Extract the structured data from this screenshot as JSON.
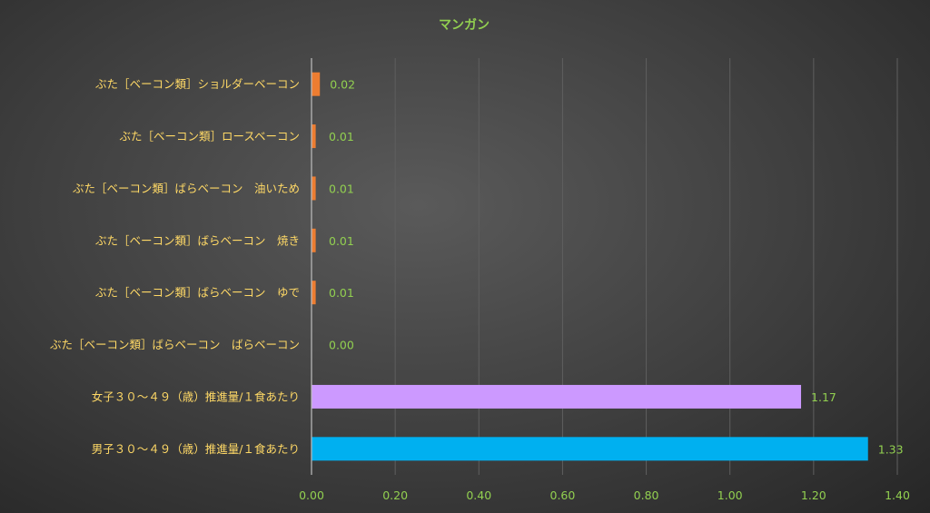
{
  "chart_data": {
    "type": "bar",
    "orientation": "horizontal",
    "title": "マンガン",
    "xlabel": "",
    "ylabel": "",
    "xlim": [
      0,
      1.4
    ],
    "x_ticks": [
      "0.00",
      "0.20",
      "0.40",
      "0.60",
      "0.80",
      "1.00",
      "1.20",
      "1.40"
    ],
    "grid": true,
    "legend": "none",
    "categories": [
      "ぶた［ベーコン類］ショルダーベーコン",
      "ぶた［ベーコン類］ロースベーコン",
      "ぶた［ベーコン類］ばらベーコン　油いため",
      "ぶた［ベーコン類］ばらベーコン　焼き",
      "ぶた［ベーコン類］ばらベーコン　ゆで",
      "ぶた［ベーコン類］ばらベーコン　ばらベーコン",
      "女子３０～４９（歳）推進量/１食あたり",
      "男子３０～４９（歳）推進量/１食あたり"
    ],
    "values": [
      0.02,
      0.01,
      0.01,
      0.01,
      0.01,
      0.0,
      1.17,
      1.33
    ],
    "value_labels": [
      "0.02",
      "0.01",
      "0.01",
      "0.01",
      "0.01",
      "0.00",
      "1.17",
      "1.33"
    ],
    "bar_colors": [
      "#ed7d31",
      "#ed7d31",
      "#ed7d31",
      "#ed7d31",
      "#ed7d31",
      "#ed7d31",
      "#cc99ff",
      "#00b0f0"
    ]
  },
  "colors": {
    "title": "#92d050",
    "category_text": "#ffd966",
    "value_text": "#92d050",
    "tick_text": "#92d050",
    "grid": "#5f5f5f",
    "axis": "#bfbfbf"
  }
}
